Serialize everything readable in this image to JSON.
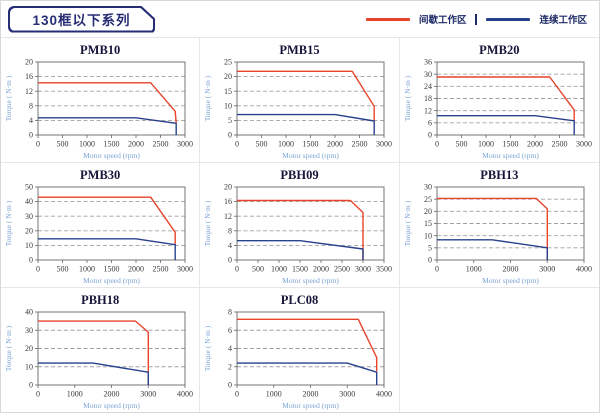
{
  "header": {
    "title": "130框以下系列",
    "legend": [
      {
        "label": "间歇工作区",
        "color": "#e8442c"
      },
      {
        "label": "连续工作区",
        "color": "#27418c"
      }
    ],
    "legend_separator": "|"
  },
  "axis": {
    "x_label": "Motor speed (rpm)",
    "y_label": "Torque ( N·m )"
  },
  "colors": {
    "intermittent": "#e8442c",
    "continuous": "#27418c",
    "grid": "#a0a0a0",
    "frame": "#666666",
    "tick_text": "#3c3c3c",
    "axis_label_blue": "#7ba3d4",
    "navy": "#262d74"
  },
  "chart_data": [
    {
      "type": "line",
      "title": "PMB10",
      "xlim": [
        0,
        3000
      ],
      "xticks": [
        0,
        500,
        1000,
        1500,
        2000,
        2500,
        3000
      ],
      "ylim": [
        0,
        20
      ],
      "yticks": [
        0,
        4,
        8,
        12,
        16,
        20
      ],
      "grid": "dashed-horizontal",
      "legend_position": "none",
      "series": [
        {
          "name": "间歇工作区",
          "color_key": "intermittent",
          "points": [
            [
              0,
              14.3
            ],
            [
              2300,
              14.3
            ],
            [
              2800,
              6.5
            ],
            [
              2820,
              3.3
            ]
          ]
        },
        {
          "name": "连续工作区",
          "color_key": "continuous",
          "points": [
            [
              0,
              4.7
            ],
            [
              2000,
              4.7
            ],
            [
              2820,
              3.2
            ],
            [
              2820,
              0
            ]
          ]
        }
      ]
    },
    {
      "type": "line",
      "title": "PMB15",
      "xlim": [
        0,
        3000
      ],
      "xticks": [
        0,
        500,
        1000,
        1500,
        2000,
        2500,
        3000
      ],
      "ylim": [
        0,
        25
      ],
      "yticks": [
        0,
        5,
        10,
        15,
        20,
        25
      ],
      "grid": "dashed-horizontal",
      "legend_position": "none",
      "series": [
        {
          "name": "间歇工作区",
          "color_key": "intermittent",
          "points": [
            [
              0,
              21.8
            ],
            [
              2350,
              21.8
            ],
            [
              2800,
              9.8
            ],
            [
              2800,
              4.9
            ]
          ]
        },
        {
          "name": "连续工作区",
          "color_key": "continuous",
          "points": [
            [
              0,
              7
            ],
            [
              2000,
              7
            ],
            [
              2800,
              4.8
            ],
            [
              2800,
              0
            ]
          ]
        }
      ]
    },
    {
      "type": "line",
      "title": "PMB20",
      "xlim": [
        0,
        3000
      ],
      "xticks": [
        0,
        500,
        1000,
        1500,
        2000,
        2500,
        3000
      ],
      "ylim": [
        0,
        36
      ],
      "yticks": [
        0,
        6,
        12,
        18,
        24,
        30,
        36
      ],
      "grid": "dashed-horizontal",
      "legend_position": "none",
      "series": [
        {
          "name": "间歇工作区",
          "color_key": "intermittent",
          "points": [
            [
              0,
              28.6
            ],
            [
              2300,
              28.6
            ],
            [
              2800,
              12.4
            ],
            [
              2800,
              7
            ]
          ]
        },
        {
          "name": "连续工作区",
          "color_key": "continuous",
          "points": [
            [
              0,
              9.5
            ],
            [
              2000,
              9.5
            ],
            [
              2800,
              7
            ],
            [
              2800,
              0
            ]
          ]
        }
      ]
    },
    {
      "type": "line",
      "title": "PMB30",
      "xlim": [
        0,
        3000
      ],
      "xticks": [
        0,
        500,
        1000,
        1500,
        2000,
        2500,
        3000
      ],
      "ylim": [
        0,
        50
      ],
      "yticks": [
        0,
        10,
        20,
        30,
        40,
        50
      ],
      "grid": "dashed-horizontal",
      "legend_position": "none",
      "series": [
        {
          "name": "间歇工作区",
          "color_key": "intermittent",
          "points": [
            [
              0,
              43
            ],
            [
              2300,
              43
            ],
            [
              2800,
              19
            ],
            [
              2800,
              10.5
            ]
          ]
        },
        {
          "name": "连续工作区",
          "color_key": "continuous",
          "points": [
            [
              0,
              14.5
            ],
            [
              2000,
              14.5
            ],
            [
              2800,
              10.5
            ],
            [
              2800,
              0
            ]
          ]
        }
      ]
    },
    {
      "type": "line",
      "title": "PBH09",
      "xlim": [
        0,
        3500
      ],
      "xticks": [
        0,
        500,
        1000,
        1500,
        2000,
        2500,
        3000,
        3500
      ],
      "ylim": [
        0,
        20
      ],
      "yticks": [
        0,
        4,
        8,
        12,
        16,
        20
      ],
      "grid": "dashed-horizontal",
      "legend_position": "none",
      "series": [
        {
          "name": "间歇工作区",
          "color_key": "intermittent",
          "points": [
            [
              0,
              16.3
            ],
            [
              2700,
              16.3
            ],
            [
              3000,
              13
            ],
            [
              3000,
              0
            ]
          ]
        },
        {
          "name": "连续工作区",
          "color_key": "continuous",
          "points": [
            [
              0,
              5.3
            ],
            [
              1500,
              5.3
            ],
            [
              3000,
              3
            ],
            [
              3000,
              0
            ]
          ]
        }
      ]
    },
    {
      "type": "line",
      "title": "PBH13",
      "xlim": [
        0,
        4000
      ],
      "xticks": [
        0,
        1000,
        2000,
        3000,
        4000
      ],
      "ylim": [
        0,
        30
      ],
      "yticks": [
        0,
        5,
        10,
        15,
        20,
        25,
        30
      ],
      "grid": "dashed-horizontal",
      "legend_position": "none",
      "series": [
        {
          "name": "间歇工作区",
          "color_key": "intermittent",
          "points": [
            [
              0,
              25.3
            ],
            [
              2700,
              25.3
            ],
            [
              3000,
              21
            ],
            [
              3000,
              0
            ]
          ]
        },
        {
          "name": "连续工作区",
          "color_key": "continuous",
          "points": [
            [
              0,
              8.3
            ],
            [
              1500,
              8.3
            ],
            [
              3000,
              5
            ],
            [
              3000,
              0
            ]
          ]
        }
      ]
    },
    {
      "type": "line",
      "title": "PBH18",
      "xlim": [
        0,
        4000
      ],
      "xticks": [
        0,
        1000,
        2000,
        3000,
        4000
      ],
      "ylim": [
        0,
        40
      ],
      "yticks": [
        0,
        10,
        20,
        30,
        40
      ],
      "grid": "dashed-horizontal",
      "legend_position": "none",
      "series": [
        {
          "name": "间歇工作区",
          "color_key": "intermittent",
          "points": [
            [
              0,
              35
            ],
            [
              2650,
              35
            ],
            [
              3000,
              29
            ],
            [
              3000,
              0
            ]
          ]
        },
        {
          "name": "连续工作区",
          "color_key": "continuous",
          "points": [
            [
              0,
              12
            ],
            [
              1500,
              12
            ],
            [
              3000,
              7
            ],
            [
              3000,
              0
            ]
          ]
        }
      ]
    },
    {
      "type": "line",
      "title": "PLC08",
      "xlim": [
        0,
        4000
      ],
      "xticks": [
        0,
        1000,
        2000,
        3000,
        4000
      ],
      "ylim": [
        0,
        8
      ],
      "yticks": [
        0,
        2,
        4,
        6,
        8
      ],
      "grid": "dashed-horizontal",
      "legend_position": "none",
      "series": [
        {
          "name": "间歇工作区",
          "color_key": "intermittent",
          "points": [
            [
              0,
              7.2
            ],
            [
              3300,
              7.2
            ],
            [
              3800,
              3
            ],
            [
              3800,
              1.5
            ]
          ]
        },
        {
          "name": "连续工作区",
          "color_key": "continuous",
          "points": [
            [
              0,
              2.4
            ],
            [
              3000,
              2.4
            ],
            [
              3800,
              1.4
            ],
            [
              3800,
              0
            ]
          ]
        }
      ]
    }
  ]
}
